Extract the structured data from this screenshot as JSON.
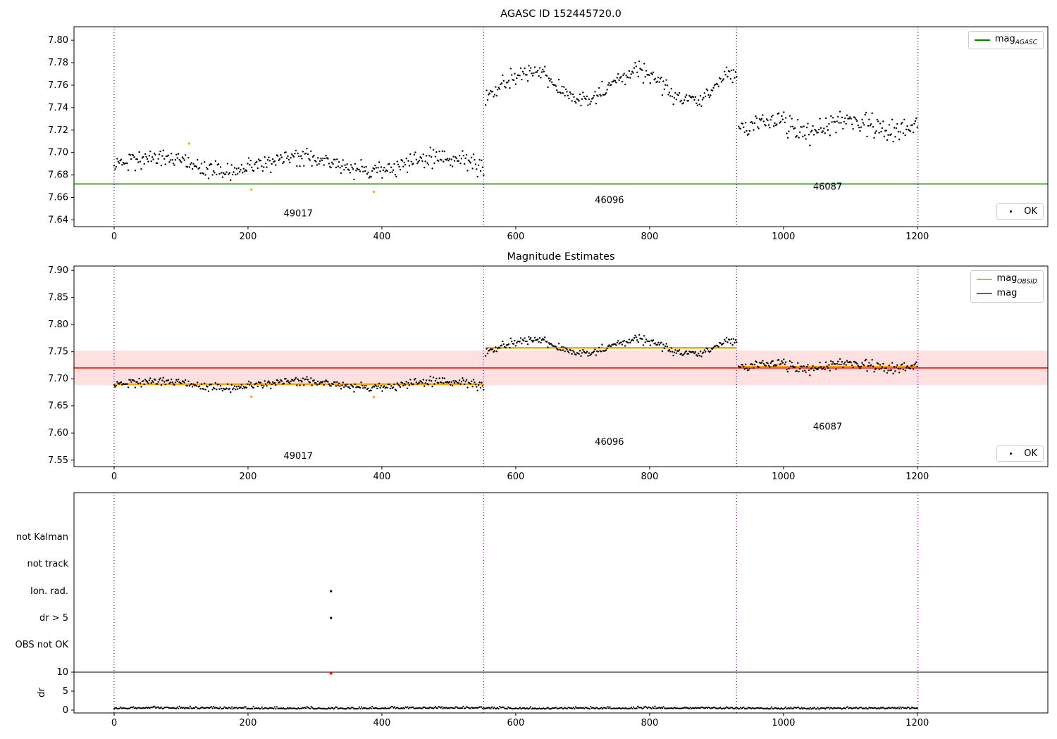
{
  "chart_data": [
    {
      "type": "scatter",
      "title": "AGASC ID 152445720.0",
      "xlabel": "",
      "ylabel": "",
      "xlim": [
        -60,
        1395
      ],
      "ylim": [
        7.634,
        7.812
      ],
      "xticks": [
        "0",
        "200",
        "400",
        "600",
        "800",
        "1000",
        "1200"
      ],
      "xtick_values": [
        0,
        200,
        400,
        600,
        800,
        1000,
        1200
      ],
      "yticks": [
        "7.80",
        "7.78",
        "7.76",
        "7.74",
        "7.72",
        "7.70",
        "7.68",
        "7.66",
        "7.64"
      ],
      "ytick_values": [
        7.8,
        7.78,
        7.76,
        7.74,
        7.72,
        7.7,
        7.68,
        7.66,
        7.64
      ],
      "grid": false,
      "agasc_line": {
        "value": 7.672,
        "color": "#008000"
      },
      "vlines": {
        "x": [
          0,
          552,
          930,
          1201
        ],
        "color": "#8B008B",
        "style": "dotted"
      },
      "legend": [
        {
          "main": "mag",
          "sub": "AGASC",
          "color": "#008000",
          "style": "line"
        }
      ],
      "ok_legend": {
        "label": "OK",
        "marker_color": "#000000"
      },
      "segments": [
        {
          "obsid": "49017",
          "x_start": 0,
          "x_end": 552,
          "mean_mag": 7.69,
          "noise": 0.0042,
          "wave_amp": 0.006,
          "wave_period": 210,
          "wave_phase": 10,
          "label_x": 275,
          "label_y": 7.643
        },
        {
          "obsid": "46096",
          "x_start": 555,
          "x_end": 930,
          "mean_mag": 7.759,
          "noise": 0.004,
          "wave_amp": 0.013,
          "wave_period": 160,
          "wave_phase": 580,
          "label_x": 740,
          "label_y": 7.655
        },
        {
          "obsid": "46087",
          "x_start": 933,
          "x_end": 1201,
          "mean_mag": 7.724,
          "noise": 0.005,
          "wave_amp": 0.006,
          "wave_period": 120,
          "wave_phase": 950,
          "label_x": 1066,
          "label_y": 7.667
        }
      ],
      "flagged_points": [
        {
          "x": 112,
          "y": 7.708,
          "color": "#FFA500"
        },
        {
          "x": 205,
          "y": 7.667,
          "color": "#FFA500"
        },
        {
          "x": 388,
          "y": 7.665,
          "color": "#FFA500"
        }
      ]
    },
    {
      "type": "scatter",
      "title": "Magnitude Estimates",
      "xlabel": "",
      "ylabel": "",
      "xlim": [
        -60,
        1395
      ],
      "ylim": [
        7.538,
        7.908
      ],
      "xticks": [
        "0",
        "200",
        "400",
        "600",
        "800",
        "1000",
        "1200"
      ],
      "xtick_values": [
        0,
        200,
        400,
        600,
        800,
        1000,
        1200
      ],
      "yticks": [
        "7.90",
        "7.85",
        "7.80",
        "7.75",
        "7.70",
        "7.65",
        "7.60",
        "7.55"
      ],
      "ytick_values": [
        7.9,
        7.85,
        7.8,
        7.75,
        7.7,
        7.65,
        7.6,
        7.55
      ],
      "grid": false,
      "mag_line": {
        "value": 7.72,
        "color": "#FF0000",
        "band": [
          7.688,
          7.752
        ],
        "band_color": "rgba(255,0,0,0.12)"
      },
      "obsid_line_color": "#FFA500",
      "obsid_lines": [
        {
          "obsid": "49017",
          "x_start": 0,
          "x_end": 552,
          "value": 7.69
        },
        {
          "obsid": "46096",
          "x_start": 555,
          "x_end": 930,
          "value": 7.757
        },
        {
          "obsid": "46087",
          "x_start": 933,
          "x_end": 1201,
          "value": 7.722
        }
      ],
      "vlines": {
        "x": [
          0,
          552,
          930,
          1201
        ],
        "color": "#8B008B",
        "style": "dotted"
      },
      "legend": [
        {
          "main": "mag",
          "sub": "OBSID",
          "color": "#FFA500",
          "style": "line"
        },
        {
          "main": "mag",
          "sub": "",
          "color": "#FF0000",
          "style": "line"
        }
      ],
      "ok_legend": {
        "label": "OK",
        "marker_color": "#000000"
      },
      "annotations": [
        {
          "text": "49017",
          "x": 275,
          "y": 7.552
        },
        {
          "text": "46096",
          "x": 740,
          "y": 7.578
        },
        {
          "text": "46087",
          "x": 1066,
          "y": 7.606
        }
      ],
      "flagged_points": [
        {
          "x": 205,
          "y": 7.667,
          "color": "#FFA500"
        },
        {
          "x": 388,
          "y": 7.666,
          "color": "#FFA500"
        }
      ]
    },
    {
      "type": "scatter",
      "title": "",
      "xlim": [
        -60,
        1395
      ],
      "xticks": [
        "0",
        "200",
        "400",
        "600",
        "800",
        "1000",
        "1200"
      ],
      "xtick_values": [
        0,
        200,
        400,
        600,
        800,
        1000,
        1200
      ],
      "flag_rows": [
        "not Kalman",
        "not track",
        "Ion. rad.",
        "dr > 5",
        "OBS not OK"
      ],
      "flag_points": [
        {
          "row": "Ion. rad.",
          "x": 324
        },
        {
          "row": "dr > 5",
          "x": 324
        }
      ],
      "dr_axis": {
        "label": "dr",
        "ticks": [
          "10",
          "5",
          "0"
        ],
        "tick_values": [
          10,
          5,
          0
        ],
        "threshold_line": 10
      },
      "dr_series": {
        "base": 0.35,
        "noise": 0.25,
        "wave": 0.05
      },
      "dr_outliers": [
        {
          "x": 324,
          "y": 9.7,
          "color": "#FF0000"
        }
      ],
      "vlines": {
        "x": [
          0,
          552,
          930,
          1201
        ],
        "color": "#8B008B",
        "style": "dotted"
      }
    }
  ]
}
